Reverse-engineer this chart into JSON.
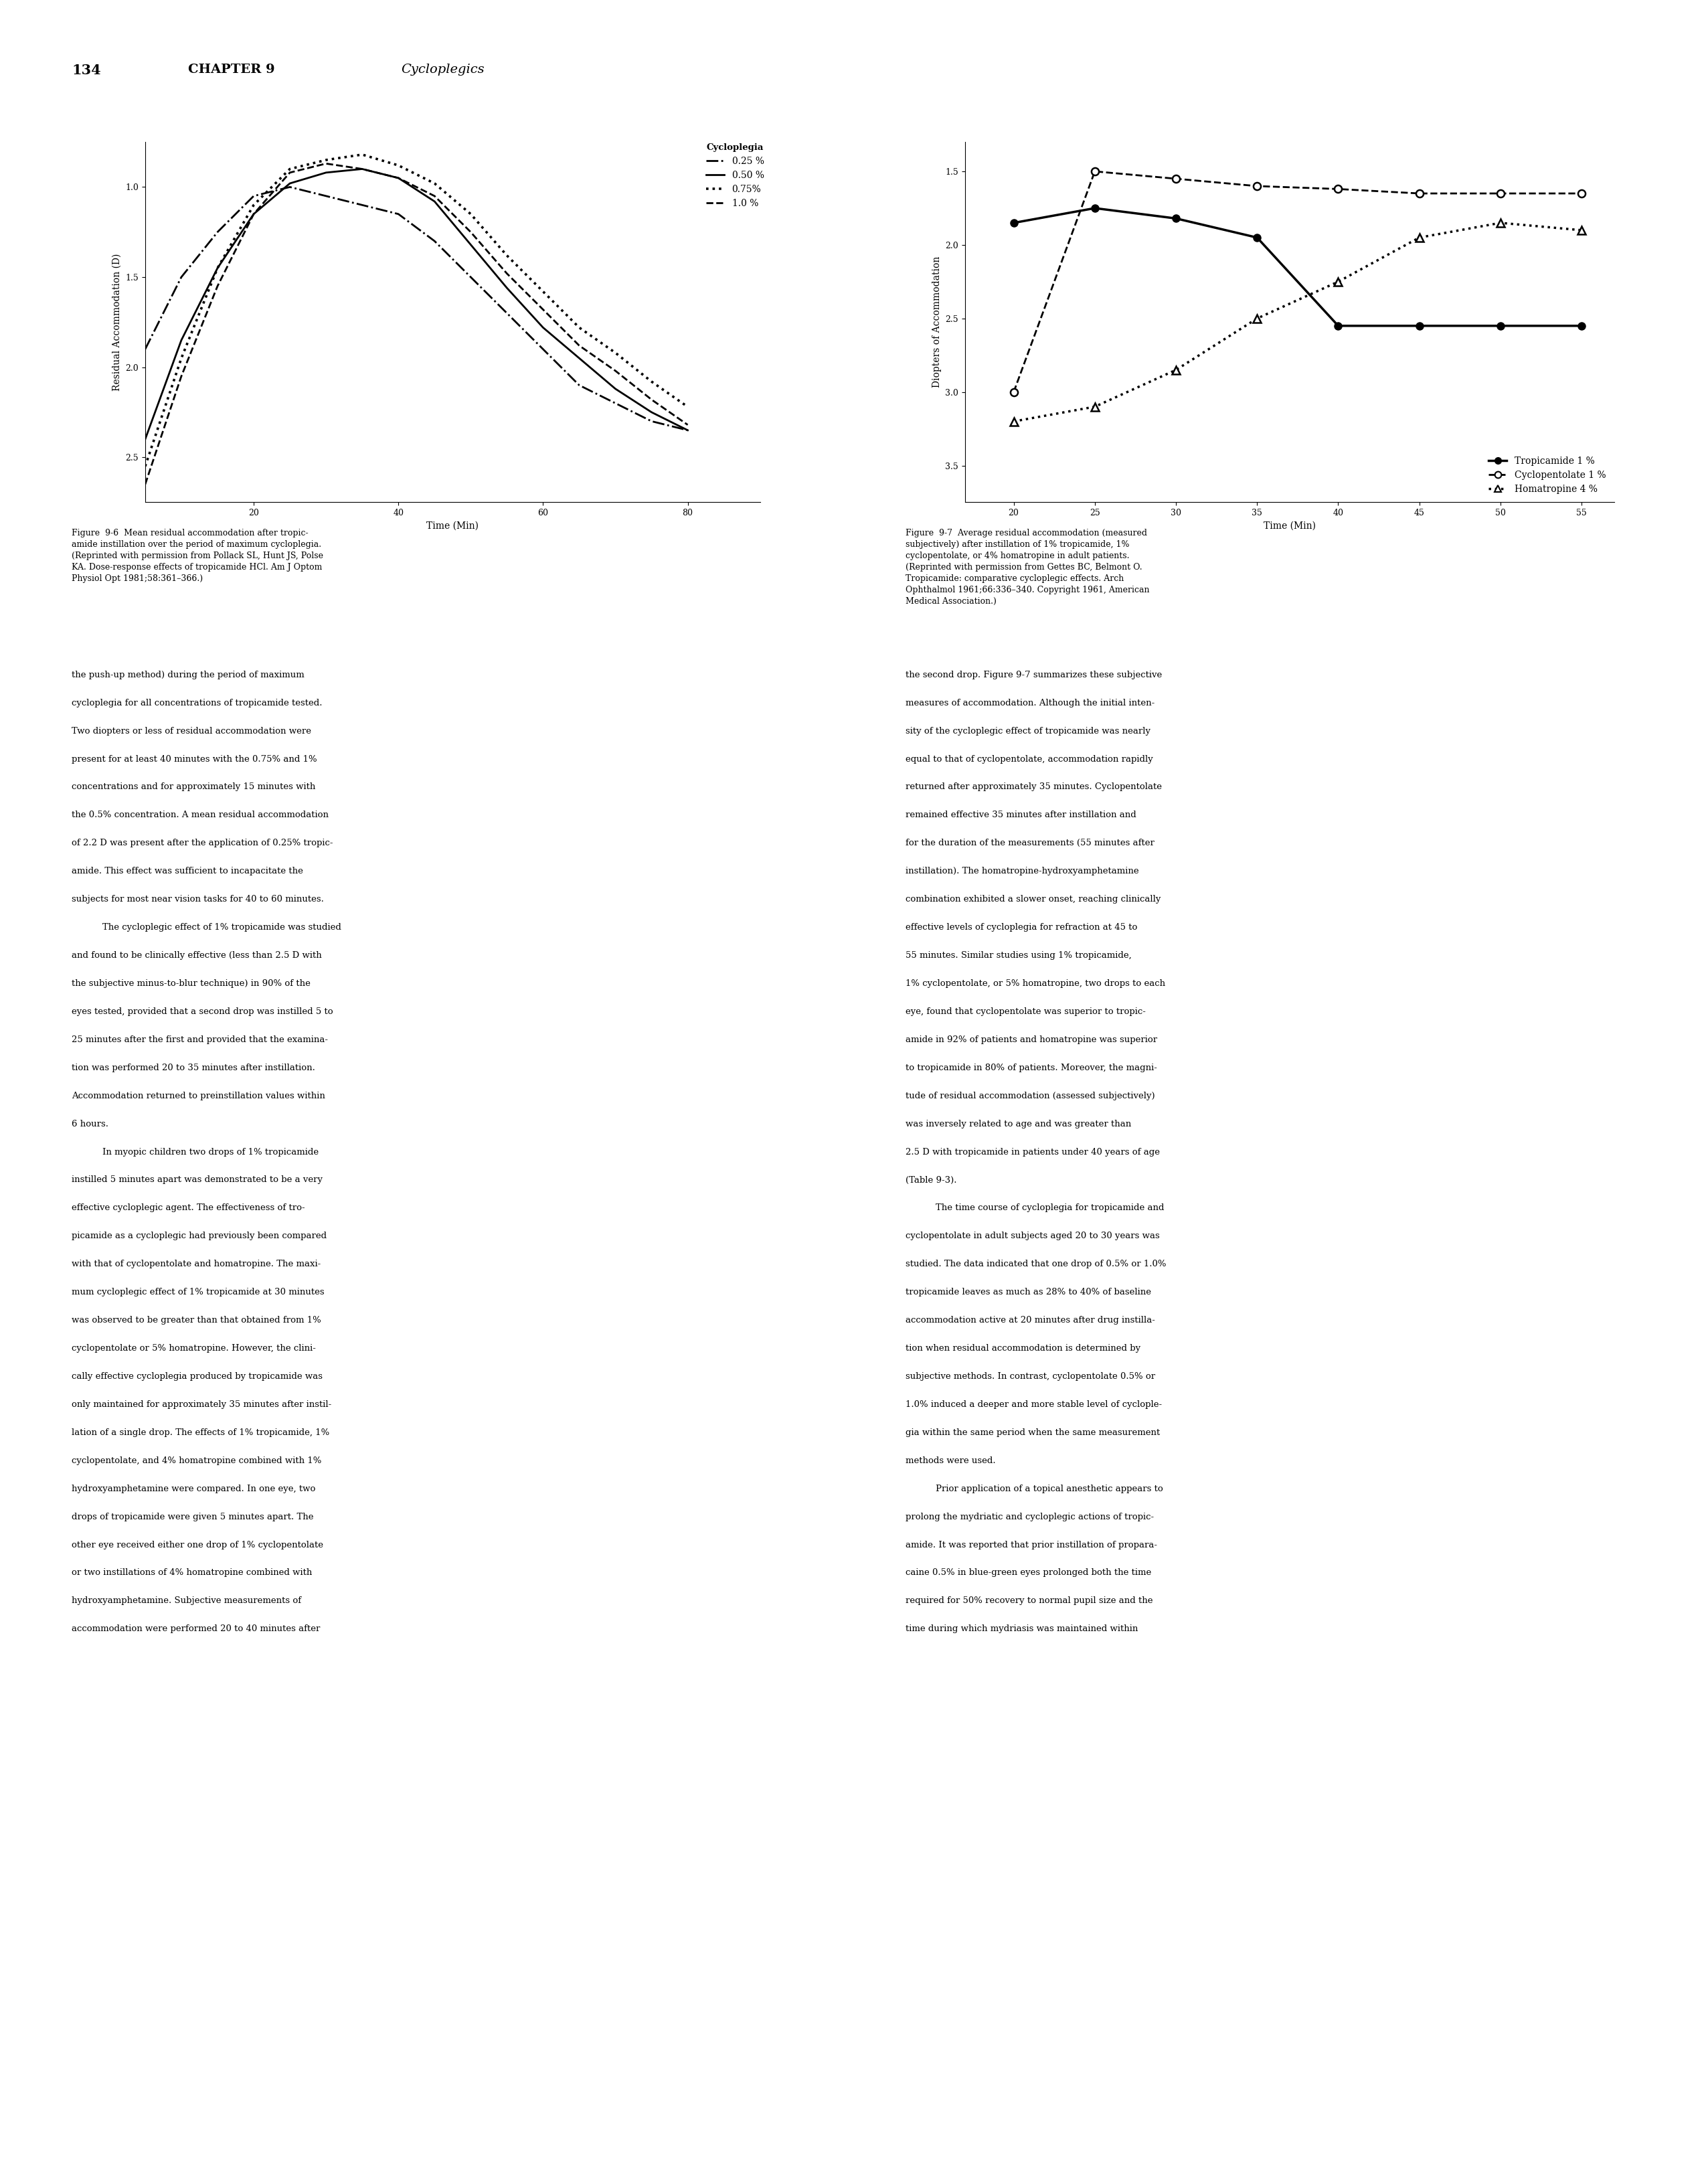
{
  "page_number": "134",
  "chapter_header": "CHAPTER 9",
  "chapter_title": "Cycloplegics",
  "fig6": {
    "xlabel": "Time (Min)",
    "ylabel": "Residual Accommodation (D)",
    "yticks": [
      1.0,
      1.5,
      2.0,
      2.5
    ],
    "xticks": [
      20,
      40,
      60,
      80
    ],
    "xlim": [
      5,
      90
    ],
    "ylim": [
      2.75,
      0.75
    ],
    "legend_title": "Cycloplegia",
    "series_025_x": [
      5,
      10,
      15,
      20,
      25,
      30,
      35,
      40,
      45,
      50,
      55,
      60,
      65,
      70,
      75,
      80
    ],
    "series_025_y": [
      1.9,
      1.5,
      1.25,
      1.05,
      1.0,
      1.05,
      1.1,
      1.15,
      1.3,
      1.5,
      1.7,
      1.9,
      2.1,
      2.2,
      2.3,
      2.35
    ],
    "series_050_x": [
      5,
      10,
      15,
      20,
      25,
      30,
      35,
      40,
      45,
      50,
      55,
      60,
      65,
      70,
      75,
      80
    ],
    "series_050_y": [
      2.4,
      1.85,
      1.45,
      1.15,
      0.98,
      0.92,
      0.9,
      0.95,
      1.08,
      1.32,
      1.56,
      1.78,
      1.95,
      2.12,
      2.25,
      2.35
    ],
    "series_075_x": [
      5,
      10,
      15,
      20,
      25,
      30,
      35,
      40,
      45,
      50,
      55,
      60,
      65,
      70,
      75,
      80
    ],
    "series_075_y": [
      2.55,
      1.95,
      1.45,
      1.1,
      0.9,
      0.85,
      0.82,
      0.88,
      0.98,
      1.15,
      1.38,
      1.58,
      1.78,
      1.92,
      2.08,
      2.22
    ],
    "series_10_x": [
      5,
      10,
      15,
      20,
      25,
      30,
      35,
      40,
      45,
      50,
      55,
      60,
      65,
      70,
      75,
      80
    ],
    "series_10_y": [
      2.65,
      2.05,
      1.55,
      1.15,
      0.92,
      0.87,
      0.9,
      0.95,
      1.05,
      1.25,
      1.48,
      1.68,
      1.88,
      2.02,
      2.18,
      2.32
    ]
  },
  "fig7": {
    "xlabel": "Time (Min)",
    "ylabel": "Diopters of Accommodation",
    "yticks": [
      1.5,
      2.0,
      2.5,
      3.0,
      3.5
    ],
    "xticks": [
      20,
      25,
      30,
      35,
      40,
      45,
      50,
      55
    ],
    "xlim": [
      17,
      57
    ],
    "ylim": [
      3.75,
      1.3
    ],
    "tropic_x": [
      20,
      25,
      30,
      35,
      40,
      45,
      50,
      55
    ],
    "tropic_y": [
      1.85,
      1.75,
      1.82,
      1.95,
      2.55,
      2.55,
      2.55,
      2.55
    ],
    "cyclo_x": [
      20,
      25,
      30,
      35,
      40,
      45,
      50,
      55
    ],
    "cyclo_y": [
      3.0,
      1.5,
      1.55,
      1.6,
      1.62,
      1.65,
      1.65,
      1.65
    ],
    "homa_x": [
      20,
      25,
      30,
      35,
      40,
      45,
      50,
      55
    ],
    "homa_y": [
      3.2,
      3.1,
      2.85,
      2.5,
      2.25,
      1.95,
      1.85,
      1.9
    ]
  },
  "fig6_caption": "Figure  9-6  Mean residual accommodation after tropic-\namide instillation over the period of maximum cycloplegia.\n(Reprinted with permission from Pollack SL, Hunt JS, Polse\nKA. Dose-response effects of tropicamide HCl. Am J Optom\nPhysiol Opt 1981;58:361–366.)",
  "fig7_caption": "Figure  9-7  Average residual accommodation (measured\nsubjectively) after instillation of 1% tropicamide, 1%\ncyclopentolate, or 4% homatropine in adult patients.\n(Reprinted with permission from Gettes BC, Belmont O.\nTropicamide: comparative cycloplegic effects. Arch\nOphthalmol 1961;66:336–340. Copyright 1961, American\nMedical Association.)",
  "body_left_lines": [
    "the push-up method) during the period of maximum",
    "cycloplegia for all concentrations of tropicamide tested.",
    "Two diopters or less of residual accommodation were",
    "present for at least 40 minutes with the 0.75% and 1%",
    "concentrations and for approximately 15 minutes with",
    "the 0.5% concentration. A mean residual accommodation",
    "of 2.2 D was present after the application of 0.25% tropic-",
    "amide. This effect was sufficient to incapacitate the",
    "subjects for most near vision tasks for 40 to 60 minutes.",
    " The cycloplegic effect of 1% tropicamide was studied",
    "and found to be clinically effective (less than 2.5 D with",
    "the subjective minus-to-blur technique) in 90% of the",
    "eyes tested, provided that a second drop was instilled 5 to",
    "25 minutes after the first and provided that the examina-",
    "tion was performed 20 to 35 minutes after instillation.",
    "Accommodation returned to preinstillation values within",
    "6 hours.",
    " In myopic children two drops of 1% tropicamide",
    "instilled 5 minutes apart was demonstrated to be a very",
    "effective cycloplegic agent. The effectiveness of tro-",
    "picamide as a cycloplegic had previously been compared",
    "with that of cyclopentolate and homatropine. The maxi-",
    "mum cycloplegic effect of 1% tropicamide at 30 minutes",
    "was observed to be greater than that obtained from 1%",
    "cyclopentolate or 5% homatropine. However, the clini-",
    "cally effective cycloplegia produced by tropicamide was",
    "only maintained for approximately 35 minutes after instil-",
    "lation of a single drop. The effects of 1% tropicamide, 1%",
    "cyclopentolate, and 4% homatropine combined with 1%",
    "hydroxyamphetamine were compared. In one eye, two",
    "drops of tropicamide were given 5 minutes apart. The",
    "other eye received either one drop of 1% cyclopentolate",
    "or two instillations of 4% homatropine combined with",
    "hydroxyamphetamine. Subjective measurements of",
    "accommodation were performed 20 to 40 minutes after"
  ],
  "body_right_lines": [
    "the second drop. Figure 9-7 summarizes these subjective",
    "measures of accommodation. Although the initial inten-",
    "sity of the cycloplegic effect of tropicamide was nearly",
    "equal to that of cyclopentolate, accommodation rapidly",
    "returned after approximately 35 minutes. Cyclopentolate",
    "remained effective 35 minutes after instillation and",
    "for the duration of the measurements (55 minutes after",
    "instillation). The homatropine-hydroxyamphetamine",
    "combination exhibited a slower onset, reaching clinically",
    "effective levels of cycloplegia for refraction at 45 to",
    "55 minutes. Similar studies using 1% tropicamide,",
    "1% cyclopentolate, or 5% homatropine, two drops to each",
    "eye, found that cyclopentolate was superior to tropic-",
    "amide in 92% of patients and homatropine was superior",
    "to tropicamide in 80% of patients. Moreover, the magni-",
    "tude of residual accommodation (assessed subjectively)",
    "was inversely related to age and was greater than",
    "2.5 D with tropicamide in patients under 40 years of age",
    "(Table 9-3).",
    " The time course of cycloplegia for tropicamide and",
    "cyclopentolate in adult subjects aged 20 to 30 years was",
    "studied. The data indicated that one drop of 0.5% or 1.0%",
    "tropicamide leaves as much as 28% to 40% of baseline",
    "accommodation active at 20 minutes after drug instilla-",
    "tion when residual accommodation is determined by",
    "subjective methods. In contrast, cyclopentolate 0.5% or",
    "1.0% induced a deeper and more stable level of cyclople-",
    "gia within the same period when the same measurement",
    "methods were used.",
    " Prior application of a topical anesthetic appears to",
    "prolong the mydriatic and cycloplegic actions of tropic-",
    "amide. It was reported that prior instillation of propara-",
    "caine 0.5% in blue-green eyes prolonged both the time",
    "required for 50% recovery to normal pupil size and the",
    "time during which mydriasis was maintained within"
  ]
}
